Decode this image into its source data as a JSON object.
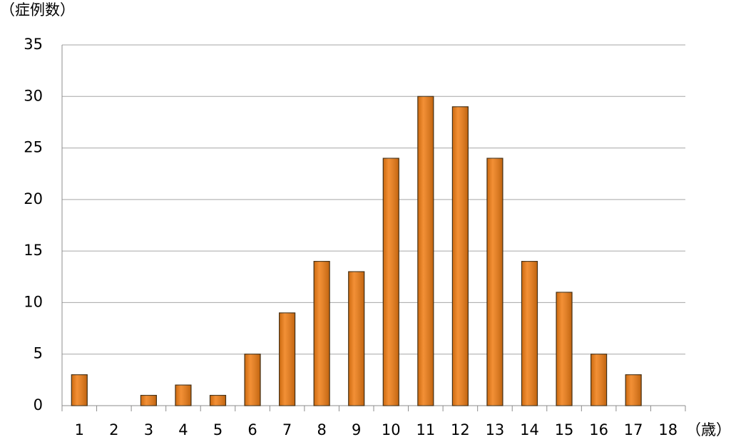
{
  "chart_data": {
    "type": "bar",
    "y_label": "（症例数）",
    "x_label": "（歳）",
    "categories": [
      "1",
      "2",
      "3",
      "4",
      "5",
      "6",
      "7",
      "8",
      "9",
      "10",
      "11",
      "12",
      "13",
      "14",
      "15",
      "16",
      "17",
      "18"
    ],
    "values": [
      3,
      0,
      1,
      2,
      1,
      5,
      9,
      14,
      13,
      24,
      30,
      29,
      24,
      14,
      11,
      5,
      3,
      0
    ],
    "color": "#f07c12",
    "ylim": [
      0,
      35
    ],
    "yticks": [
      0,
      5,
      10,
      15,
      20,
      25,
      30,
      35
    ],
    "grid": true
  }
}
